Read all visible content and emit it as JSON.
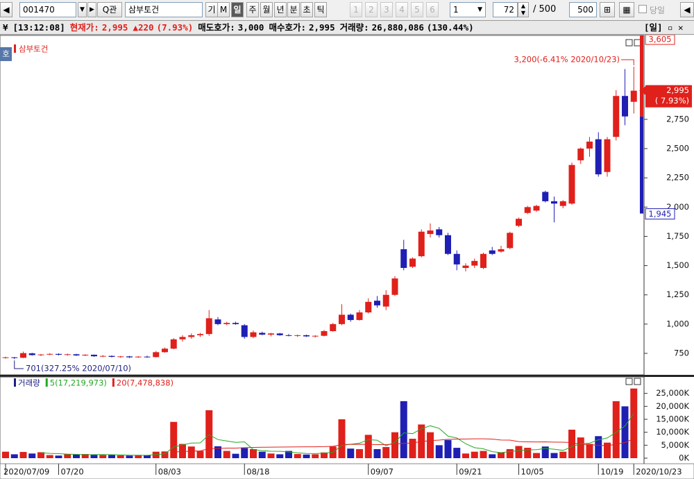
{
  "toolbar": {
    "code": "001470",
    "name": "삼부토건",
    "period_buttons": [
      "기",
      "M",
      "일",
      "주",
      "월",
      "년",
      "분",
      "초",
      "틱"
    ],
    "number_buttons": [
      "1",
      "2",
      "3",
      "4",
      "5",
      "6"
    ],
    "interval": "1",
    "count": "72",
    "total": "/ 500",
    "total_input": "500",
    "today": "당일"
  },
  "info_bar": {
    "time": "[13:12:08]",
    "price_label": "현재가:",
    "price": "2,995",
    "change": "▲220",
    "change_pct": "(7.93%)",
    "ask_label": "매도호가:",
    "ask": "3,000",
    "bid_label": "매수호가:",
    "bid": "2,995",
    "volume_label": "거래량:",
    "volume": "26,880,086",
    "volume_pct": "(130.44%)",
    "period": "[일]"
  },
  "chart_data": [
    {
      "type": "candlestick",
      "side_label": "호",
      "series": [
        {
          "name": "삼부토건",
          "up_color": "#e0201b",
          "down_color": "#1f1fb4",
          "open": [
            712,
            716,
            712,
            750,
            735,
            740,
            745,
            738,
            742,
            732,
            738,
            725,
            728,
            720,
            724,
            716,
            722,
            718,
            760,
            790,
            870,
            890,
            905,
            915,
            1040,
            1000,
            1010,
            990,
            890,
            925,
            910,
            920,
            905,
            900,
            905,
            895,
            900,
            940,
            1000,
            1080,
            1035,
            1100,
            1200,
            1150,
            1250,
            1640,
            1490,
            1580,
            1770,
            1810,
            1760,
            1600,
            1480,
            1500,
            1480,
            1630,
            1620,
            1650,
            1840,
            1950,
            1970,
            2130,
            2050,
            2010,
            2030,
            2400,
            2500,
            2580,
            2300,
            2600,
            2950,
            2900
          ],
          "high": [
            722,
            720,
            765,
            755,
            745,
            752,
            750,
            748,
            746,
            742,
            740,
            735,
            732,
            728,
            728,
            726,
            730,
            770,
            800,
            880,
            905,
            920,
            925,
            1120,
            1060,
            1020,
            1020,
            1000,
            945,
            935,
            925,
            925,
            915,
            910,
            910,
            905,
            950,
            1010,
            1170,
            1090,
            1120,
            1220,
            1240,
            1290,
            1410,
            1720,
            1570,
            1810,
            1860,
            1830,
            1780,
            1630,
            1520,
            1560,
            1610,
            1660,
            1670,
            1790,
            1910,
            2010,
            2020,
            2140,
            2090,
            2060,
            2380,
            2510,
            2600,
            2640,
            2600,
            3000,
            3180,
            3200
          ],
          "low": [
            705,
            701,
            710,
            730,
            728,
            735,
            732,
            730,
            728,
            726,
            720,
            718,
            715,
            712,
            710,
            712,
            712,
            715,
            755,
            785,
            850,
            875,
            890,
            900,
            990,
            990,
            995,
            875,
            880,
            905,
            895,
            900,
            895,
            890,
            890,
            885,
            895,
            935,
            990,
            1020,
            1030,
            1090,
            1140,
            1120,
            1240,
            1460,
            1480,
            1570,
            1740,
            1740,
            1590,
            1460,
            1450,
            1480,
            1470,
            1590,
            1610,
            1640,
            1830,
            1940,
            1960,
            2040,
            1870,
            1990,
            2020,
            2370,
            2430,
            2260,
            2260,
            2570,
            2700,
            2800
          ],
          "close": [
            716,
            710,
            752,
            735,
            740,
            745,
            738,
            742,
            732,
            738,
            725,
            728,
            720,
            724,
            716,
            722,
            718,
            760,
            790,
            870,
            890,
            905,
            915,
            1050,
            1000,
            1010,
            1000,
            890,
            930,
            910,
            920,
            905,
            900,
            905,
            895,
            900,
            940,
            1000,
            1080,
            1035,
            1100,
            1190,
            1160,
            1250,
            1390,
            1480,
            1560,
            1790,
            1800,
            1760,
            1600,
            1510,
            1500,
            1540,
            1600,
            1600,
            1640,
            1780,
            1900,
            2000,
            2010,
            2050,
            2030,
            2050,
            2360,
            2500,
            2560,
            2280,
            2580,
            2950,
            2775,
            2995
          ]
        }
      ],
      "ylim": [
        566,
        3432
      ],
      "yticks": [
        750,
        {
          "value": 1000,
          "label": "1,000"
        },
        {
          "value": 1250,
          "label": "1,250"
        },
        {
          "value": 1500,
          "label": "1,500"
        },
        {
          "value": 1750,
          "label": "1,750"
        },
        {
          "value": 2000,
          "label": "2,000"
        },
        {
          "value": 2250,
          "label": "2,250"
        },
        {
          "value": 2500,
          "label": "2,500"
        },
        {
          "value": 2750,
          "label": "2,750"
        }
      ],
      "annotations": [
        {
          "text": "3,200(-6.41% 2020/10/23)",
          "color": "#e0201b"
        },
        {
          "text": "701(327.25% 2020/07/10)",
          "color": "#1f1f80"
        }
      ],
      "upper_limit": {
        "value": 3605,
        "label": "3,605"
      },
      "lower_limit": {
        "value": 1945,
        "label": "1,945"
      },
      "current": {
        "value": 2995,
        "label": "2,995"
      },
      "current_change": "( 7.93%)"
    },
    {
      "type": "bar",
      "categories": [
        "2020/07/09",
        null,
        null,
        null,
        null,
        null,
        "07/20",
        null,
        null,
        null,
        null,
        null,
        null,
        null,
        null,
        null,
        null,
        "08/03",
        null,
        null,
        null,
        null,
        null,
        null,
        null,
        null,
        null,
        "08/18",
        null,
        null,
        null,
        null,
        null,
        null,
        null,
        null,
        null,
        null,
        null,
        null,
        null,
        "09/07",
        null,
        null,
        null,
        null,
        null,
        null,
        null,
        null,
        null,
        "09/21",
        null,
        null,
        null,
        null,
        null,
        null,
        "10/05",
        null,
        null,
        null,
        null,
        null,
        null,
        null,
        null,
        "10/19",
        null,
        null,
        null,
        "2020/10/23"
      ],
      "series": [
        {
          "name": "거래량",
          "color": "#1f1f80",
          "values": [
            2500,
            1500,
            2400,
            1800,
            2300,
            1200,
            1000,
            1500,
            1400,
            1600,
            1300,
            1200,
            1200,
            1100,
            1000,
            1200,
            1100,
            2500,
            2600,
            14000,
            5500,
            4500,
            2800,
            18500,
            4600,
            2800,
            1700,
            3900,
            3500,
            2500,
            1800,
            1500,
            2800,
            1600,
            1400,
            1500,
            2200,
            4500,
            15000,
            3700,
            3500,
            9000,
            3500,
            4300,
            10000,
            22000,
            7500,
            13000,
            10000,
            5000,
            7000,
            4000,
            1800,
            2500,
            2800,
            1500,
            2200,
            3500,
            4700,
            4000,
            2000,
            4500,
            2000,
            2500,
            11000,
            8000,
            5500,
            8500,
            6000,
            22000,
            20000,
            26880
          ]
        },
        {
          "name": "5(17,219,973)",
          "type": "line",
          "color": "#22a822",
          "values": [
            null,
            null,
            null,
            null,
            2100,
            1840,
            1740,
            1560,
            1480,
            1340,
            1360,
            1400,
            1340,
            1280,
            1160,
            1140,
            1120,
            1380,
            1680,
            4280,
            5140,
            5820,
            5880,
            9060,
            7180,
            6640,
            6080,
            6300,
            3300,
            2880,
            2680,
            2640,
            2420,
            2040,
            1820,
            1760,
            1900,
            2240,
            4920,
            5380,
            5780,
            7140,
            6940,
            4800,
            6060,
            9760,
            9460,
            11360,
            12500,
            11500,
            8500,
            7800,
            5560,
            4060,
            3620,
            2520,
            2160,
            2500,
            2940,
            3180,
            3280,
            3740,
            3440,
            3000,
            4400,
            5600,
            5800,
            7100,
            7800,
            10000,
            12400,
            17220
          ]
        },
        {
          "name": "20(7,478,838)",
          "type": "line",
          "color": "#e0201b",
          "values": [
            null,
            null,
            null,
            null,
            null,
            null,
            null,
            null,
            null,
            null,
            null,
            null,
            null,
            null,
            null,
            null,
            null,
            null,
            null,
            2400,
            2550,
            2700,
            2800,
            3650,
            3800,
            3880,
            3900,
            4050,
            4150,
            4220,
            4250,
            4270,
            4330,
            4360,
            4380,
            4400,
            4450,
            4600,
            5250,
            5310,
            5360,
            5330,
            5230,
            5220,
            5450,
            5700,
            5890,
            6400,
            6810,
            6980,
            7250,
            7380,
            7400,
            7450,
            7480,
            7350,
            7000,
            6950,
            6390,
            6300,
            6250,
            6300,
            6200,
            6150,
            6030,
            5320,
            5210,
            4980,
            4780,
            5380,
            6030,
            7480
          ]
        }
      ],
      "ylim": [
        0,
        30000
      ],
      "yticks": [
        {
          "value": 0,
          "label": "0K"
        },
        {
          "value": 5000,
          "label": "5,000K"
        },
        {
          "value": 10000,
          "label": "10,000K"
        },
        {
          "value": 15000,
          "label": "15,000K"
        },
        {
          "value": 20000,
          "label": "20,000K"
        },
        {
          "value": 25000,
          "label": "25,000K"
        }
      ]
    }
  ]
}
